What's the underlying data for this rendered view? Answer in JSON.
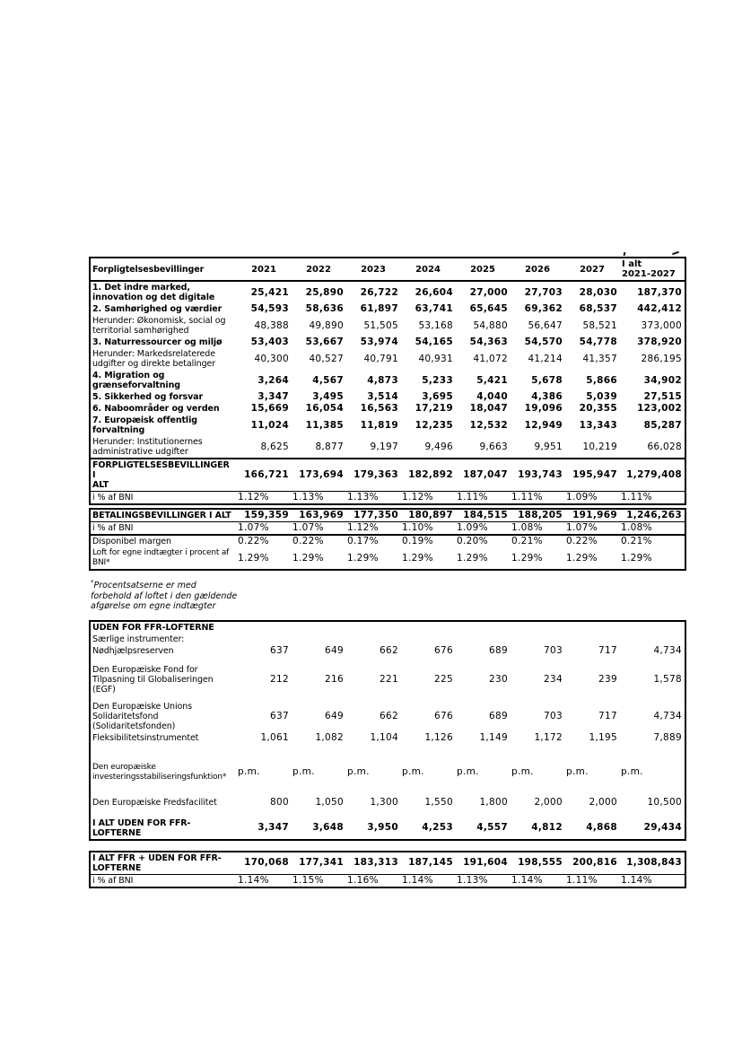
{
  "columns": [
    "2021",
    "2022",
    "2023",
    "2024",
    "2025",
    "2026",
    "2027"
  ],
  "total_header": "I alt\n2021-2027",
  "tables": {
    "commitments": {
      "header": {
        "corner": "Forpligtelsesbevillinger"
      },
      "rows": [
        {
          "label": "1. Det indre marked,\ninnovation og det digitale",
          "label_bold": true,
          "values_bold": true,
          "values": [
            "25,421",
            "25,890",
            "26,722",
            "26,604",
            "27,000",
            "27,703",
            "28,030",
            "187,370"
          ]
        },
        {
          "label": "2. Samhørighed og værdier",
          "label_bold": true,
          "values_bold": true,
          "values": [
            "54,593",
            "58,636",
            "61,897",
            "63,741",
            "65,645",
            "69,362",
            "68,537",
            "442,412"
          ]
        },
        {
          "label": "Herunder: Økonomisk, social og\nterritorial samhørighed",
          "values": [
            "48,388",
            "49,890",
            "51,505",
            "53,168",
            "54,880",
            "56,647",
            "58,521",
            "373,000"
          ]
        },
        {
          "label": "3. Naturressourcer og miljø",
          "label_bold": true,
          "values_bold": true,
          "values": [
            "53,403",
            "53,667",
            "53,974",
            "54,165",
            "54,363",
            "54,570",
            "54,778",
            "378,920"
          ]
        },
        {
          "label": "Herunder: Markedsrelaterede\nudgifter og direkte betalinger",
          "values": [
            "40,300",
            "40,527",
            "40,791",
            "40,931",
            "41,072",
            "41,214",
            "41,357",
            "286,195"
          ]
        },
        {
          "label": "4. Migration og\ngrænseforvaltning",
          "label_bold": true,
          "values_bold": true,
          "values": [
            "3,264",
            "4,567",
            "4,873",
            "5,233",
            "5,421",
            "5,678",
            "5,866",
            "34,902"
          ]
        },
        {
          "label": "5. Sikkerhed og forsvar",
          "label_bold": true,
          "values_bold": true,
          "values": [
            "3,347",
            "3,495",
            "3,514",
            "3,695",
            "4,040",
            "4,386",
            "5,039",
            "27,515"
          ]
        },
        {
          "label": "6. Naboområder og verden",
          "label_bold": true,
          "values_bold": true,
          "values": [
            "15,669",
            "16,054",
            "16,563",
            "17,219",
            "18,047",
            "19,096",
            "20,355",
            "123,002"
          ]
        },
        {
          "label": "7. Europæisk offentlig\nforvaltning",
          "label_bold": true,
          "values_bold": true,
          "values": [
            "11,024",
            "11,385",
            "11,819",
            "12,235",
            "12,532",
            "12,949",
            "13,343",
            "85,287"
          ]
        },
        {
          "label": "Herunder: Institutionernes\nadministrative udgifter",
          "values": [
            "8,625",
            "8,877",
            "9,197",
            "9,496",
            "9,663",
            "9,951",
            "10,219",
            "66,028"
          ]
        },
        {
          "label": "FORPLIGTELSESBEVILLINGER I\nALT",
          "label_bold": true,
          "values_bold": true,
          "rule_top": "thick",
          "values": [
            "166,721",
            "173,694",
            "179,363",
            "182,892",
            "187,047",
            "193,743",
            "195,947",
            "1,279,408"
          ]
        },
        {
          "label": "i % af BNI",
          "rule_top": "thin",
          "align_values": "left",
          "values": [
            "1.12%",
            "1.13%",
            "1.13%",
            "1.12%",
            "1.11%",
            "1.11%",
            "1.09%",
            "1.11%"
          ]
        }
      ]
    },
    "payments": {
      "rows": [
        {
          "label": "BETALINGSBEVILLINGER I ALT",
          "label_bold": true,
          "values_bold": true,
          "values": [
            "159,359",
            "163,969",
            "177,350",
            "180,897",
            "184,515",
            "188,205",
            "191,969",
            "1,246,263"
          ]
        },
        {
          "label": "i % af BNI",
          "rule_top": "thin",
          "align_values": "left",
          "values": [
            "1.07%",
            "1.07%",
            "1.12%",
            "1.10%",
            "1.09%",
            "1.08%",
            "1.07%",
            "1.08%"
          ]
        },
        {
          "label": "Disponibel margen",
          "rule_top": "thick",
          "align_values": "left",
          "values": [
            "0.22%",
            "0.22%",
            "0.17%",
            "0.19%",
            "0.20%",
            "0.21%",
            "0.22%",
            "0.21%"
          ]
        },
        {
          "label": "Loft for egne indtægter i procent af\nBNI*",
          "small_label": true,
          "align_values": "left",
          "values": [
            "1.29%",
            "1.29%",
            "1.29%",
            "1.29%",
            "1.29%",
            "1.29%",
            "1.29%",
            "1.29%"
          ]
        }
      ]
    },
    "outside": {
      "rows": [
        {
          "label": "UDEN FOR FFR-LOFTERNE",
          "label_bold": true
        },
        {
          "label": "Særlige instrumenter:"
        },
        {
          "label": "Nødhjælpsreserven",
          "values": [
            "637",
            "649",
            "662",
            "676",
            "689",
            "703",
            "717",
            "4,734"
          ]
        },
        {
          "label": "Den Europæiske Fond for\nTilpasning til Globaliseringen (EGF)",
          "gap_before": 8,
          "values": [
            "212",
            "216",
            "221",
            "225",
            "230",
            "234",
            "239",
            "1,578"
          ]
        },
        {
          "label": "Den Europæiske Unions\nSolidaritetsfond\n(Solidaritetsfonden)",
          "gap_before": 6,
          "values": [
            "637",
            "649",
            "662",
            "676",
            "689",
            "703",
            "717",
            "4,734"
          ]
        },
        {
          "label": "Fleksibilitetsinstrumentet",
          "values": [
            "1,061",
            "1,082",
            "1,104",
            "1,126",
            "1,149",
            "1,172",
            "1,195",
            "7,889"
          ]
        },
        {
          "label": "Den europæiske\ninvesteringsstabiliseringsfunktion*",
          "gap_before": 20,
          "small_label": true,
          "align_values": "left",
          "values": [
            "p.m.",
            "p.m.",
            "p.m.",
            "p.m.",
            "p.m.",
            "p.m.",
            "p.m.",
            "p.m."
          ]
        },
        {
          "label": "Den Europæiske Fredsfacilitet",
          "gap_before": 15,
          "values": [
            "800",
            "1,050",
            "1,300",
            "1,550",
            "1,800",
            "2,000",
            "2,000",
            "10,500"
          ]
        },
        {
          "label": "I ALT UDEN FOR FFR-\nLOFTERNE",
          "label_bold": true,
          "values_bold": true,
          "gap_before": 10,
          "values": [
            "3,347",
            "3,648",
            "3,950",
            "4,253",
            "4,557",
            "4,812",
            "4,868",
            "29,434"
          ]
        }
      ]
    },
    "grand": {
      "rows": [
        {
          "label": "I ALT FFR + UDEN FOR FFR-\nLOFTERNE",
          "label_bold": true,
          "values_bold": true,
          "values": [
            "170,068",
            "177,341",
            "183,313",
            "187,145",
            "191,604",
            "198,555",
            "200,816",
            "1,308,843"
          ]
        },
        {
          "label": "i % af BNI",
          "rule_top": "thin",
          "align_values": "left",
          "values": [
            "1.14%",
            "1.15%",
            "1.16%",
            "1.14%",
            "1.13%",
            "1.14%",
            "1.11%",
            "1.14%"
          ]
        }
      ]
    }
  },
  "footnote": {
    "mark": "*",
    "text": "Procentsatserne er med\nforbehold af loftet i den gældende\nafgørelse om egne indtægter"
  }
}
